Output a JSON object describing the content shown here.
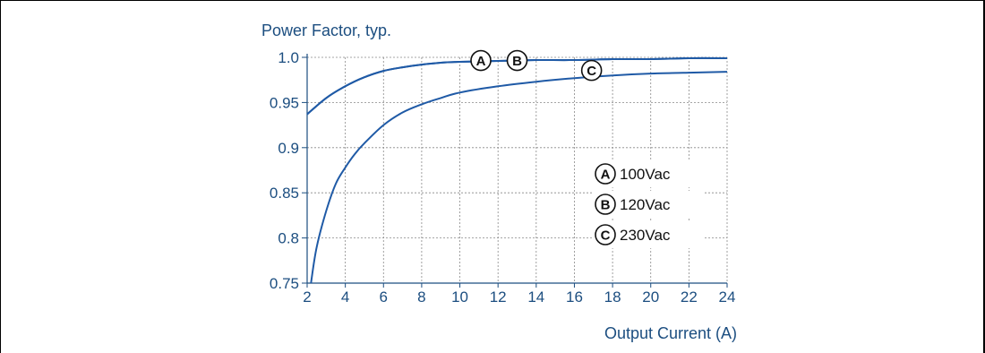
{
  "chart_data": {
    "type": "line",
    "ylabel": "Power Factor, typ.",
    "xlabel": "Output Current (A)",
    "xlim": [
      2,
      24
    ],
    "ylim": [
      0.75,
      1.0
    ],
    "x_ticks": [
      "2",
      "4",
      "6",
      "8",
      "10",
      "12",
      "14",
      "16",
      "18",
      "20",
      "22",
      "24"
    ],
    "y_ticks": [
      "0.75",
      "0.8",
      "0.85",
      "0.9",
      "0.95",
      "1.0"
    ],
    "grid": true,
    "series": [
      {
        "name": "100Vac",
        "marker": "A",
        "x": [
          2,
          3,
          4,
          5,
          6,
          7,
          8,
          9,
          10,
          12,
          14,
          16,
          18,
          20,
          22,
          24
        ],
        "y": [
          0.937,
          0.955,
          0.968,
          0.978,
          0.985,
          0.989,
          0.992,
          0.994,
          0.995,
          0.996,
          0.997,
          0.997,
          0.998,
          0.998,
          0.999,
          0.999
        ]
      },
      {
        "name": "120Vac",
        "marker": "B",
        "x": [
          2,
          3,
          4,
          5,
          6,
          7,
          8,
          9,
          10,
          12,
          14,
          16,
          18,
          20,
          22,
          24
        ],
        "y": [
          0.937,
          0.955,
          0.968,
          0.978,
          0.985,
          0.989,
          0.992,
          0.994,
          0.995,
          0.996,
          0.997,
          0.997,
          0.998,
          0.998,
          0.999,
          0.999
        ]
      },
      {
        "name": "230Vac",
        "marker": "C",
        "x": [
          2.2,
          2.5,
          3,
          3.5,
          4,
          4.5,
          5,
          6,
          7,
          8,
          9,
          10,
          12,
          14,
          16,
          18,
          20,
          22,
          24
        ],
        "y": [
          0.75,
          0.79,
          0.83,
          0.86,
          0.878,
          0.893,
          0.905,
          0.925,
          0.939,
          0.948,
          0.955,
          0.961,
          0.968,
          0.973,
          0.977,
          0.98,
          0.982,
          0.983,
          0.984
        ]
      }
    ],
    "legend": {
      "placement": "right",
      "entries": [
        {
          "marker": "A",
          "label": "100Vac"
        },
        {
          "marker": "B",
          "label": "120Vac"
        },
        {
          "marker": "C",
          "label": "230Vac"
        }
      ]
    },
    "callouts": [
      {
        "marker": "A",
        "x": 11.1,
        "y": 0.9965
      },
      {
        "marker": "B",
        "x": 13.0,
        "y": 0.9965
      },
      {
        "marker": "C",
        "x": 16.9,
        "y": 0.9855
      }
    ],
    "colors": {
      "line": "#1f5aa6",
      "text": "#1c4e80",
      "grid": "#888888"
    }
  }
}
